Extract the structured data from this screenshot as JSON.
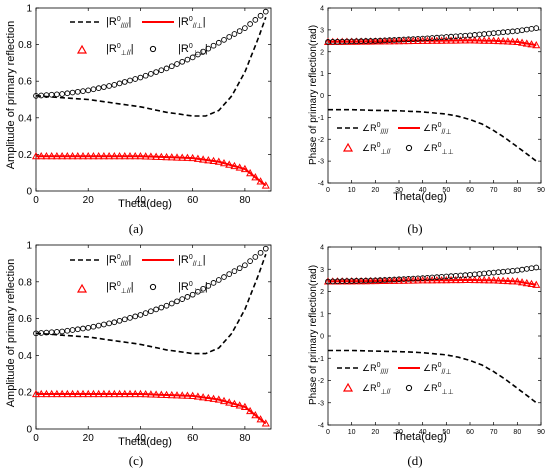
{
  "chart_data": [
    {
      "id": "a",
      "type": "line",
      "subcaption": "(a)",
      "xlabel": "Theta(deg)",
      "ylabel": "Amplitude of primary reflection",
      "xlim": [
        0,
        90
      ],
      "ylim": [
        0,
        1
      ],
      "xticks": [
        0,
        20,
        40,
        60,
        80
      ],
      "yticks": [
        0,
        0.2,
        0.4,
        0.6,
        0.8,
        1
      ],
      "grid": false,
      "legend_position": "top",
      "legend": [
        "|R0_////|",
        "|R0_//⊥|",
        "|R0_⊥//|",
        "|R0_⊥⊥|"
      ],
      "series": [
        {
          "name": "|R0_////|",
          "style": "dashed",
          "color": "#000000",
          "x": [
            0,
            10,
            20,
            30,
            40,
            50,
            60,
            65,
            70,
            75,
            80,
            85,
            88
          ],
          "y": [
            0.52,
            0.51,
            0.5,
            0.48,
            0.46,
            0.43,
            0.41,
            0.41,
            0.44,
            0.52,
            0.65,
            0.83,
            0.95
          ]
        },
        {
          "name": "|R0_//⊥|",
          "style": "solid",
          "color": "#ff0000",
          "x": [
            0,
            20,
            40,
            60,
            70,
            80,
            88
          ],
          "y": [
            0.19,
            0.19,
            0.19,
            0.18,
            0.16,
            0.12,
            0.03
          ]
        },
        {
          "name": "|R0_⊥//|",
          "style": "triangle",
          "color": "#ff0000",
          "x": [
            0,
            20,
            40,
            60,
            70,
            80,
            88
          ],
          "y": [
            0.19,
            0.19,
            0.19,
            0.18,
            0.16,
            0.12,
            0.03
          ]
        },
        {
          "name": "|R0_⊥⊥|",
          "style": "circle",
          "color": "#000000",
          "x": [
            0,
            10,
            20,
            30,
            40,
            50,
            60,
            70,
            80,
            88
          ],
          "y": [
            0.52,
            0.53,
            0.55,
            0.58,
            0.62,
            0.67,
            0.73,
            0.81,
            0.89,
            0.98
          ]
        }
      ]
    },
    {
      "id": "b",
      "type": "line",
      "subcaption": "(b)",
      "xlabel": "Theta(deg)",
      "ylabel": "Phase of primary reflection(rad)",
      "xlim": [
        0,
        90
      ],
      "ylim": [
        -4,
        4
      ],
      "xticks": [
        0,
        10,
        20,
        30,
        40,
        50,
        60,
        70,
        80,
        90
      ],
      "yticks": [
        -4,
        -3,
        -2,
        -1,
        0,
        1,
        2,
        3,
        4
      ],
      "grid": false,
      "legend_position": "center",
      "legend": [
        "∠R0_////",
        "∠R0_//⊥",
        "∠R0_⊥//",
        "∠R0_⊥⊥"
      ],
      "series": [
        {
          "name": "∠R0_////",
          "style": "dashed",
          "color": "#000000",
          "x": [
            0,
            10,
            20,
            30,
            40,
            50,
            55,
            60,
            65,
            70,
            75,
            80,
            85,
            88
          ],
          "y": [
            -0.65,
            -0.65,
            -0.68,
            -0.7,
            -0.75,
            -0.85,
            -0.95,
            -1.1,
            -1.3,
            -1.6,
            -1.95,
            -2.35,
            -2.75,
            -3.0
          ]
        },
        {
          "name": "∠R0_//⊥",
          "style": "solid",
          "color": "#ff0000",
          "x": [
            0,
            20,
            40,
            60,
            70,
            80,
            88
          ],
          "y": [
            2.45,
            2.47,
            2.5,
            2.52,
            2.5,
            2.45,
            2.3
          ]
        },
        {
          "name": "∠R0_⊥//",
          "style": "triangle",
          "color": "#ff0000",
          "x": [
            0,
            20,
            40,
            60,
            70,
            80,
            88
          ],
          "y": [
            2.45,
            2.47,
            2.5,
            2.52,
            2.5,
            2.45,
            2.3
          ]
        },
        {
          "name": "∠R0_⊥⊥",
          "style": "circle",
          "color": "#000000",
          "x": [
            0,
            20,
            40,
            60,
            80,
            88
          ],
          "y": [
            2.45,
            2.5,
            2.6,
            2.75,
            2.95,
            3.08
          ]
        }
      ]
    },
    {
      "id": "c",
      "type": "line",
      "subcaption": "(c)",
      "xlabel": "Theta(deg)",
      "ylabel": "Amplitude of primary reflection",
      "xlim": [
        0,
        90
      ],
      "ylim": [
        0,
        1
      ],
      "xticks": [
        0,
        20,
        40,
        60,
        80
      ],
      "yticks": [
        0,
        0.2,
        0.4,
        0.6,
        0.8,
        1
      ],
      "grid": false,
      "legend_position": "top",
      "legend": [
        "|R0_////|",
        "|R0_//⊥|",
        "|R0_⊥//|",
        "|R0_⊥⊥|"
      ],
      "series": [
        {
          "name": "|R0_////|",
          "style": "dashed",
          "color": "#000000",
          "x": [
            0,
            10,
            20,
            30,
            40,
            50,
            60,
            65,
            70,
            75,
            80,
            85,
            88
          ],
          "y": [
            0.52,
            0.51,
            0.5,
            0.48,
            0.46,
            0.43,
            0.41,
            0.41,
            0.44,
            0.52,
            0.65,
            0.83,
            0.95
          ]
        },
        {
          "name": "|R0_//⊥|",
          "style": "solid",
          "color": "#ff0000",
          "x": [
            0,
            20,
            40,
            60,
            70,
            80,
            88
          ],
          "y": [
            0.19,
            0.19,
            0.19,
            0.18,
            0.16,
            0.12,
            0.03
          ]
        },
        {
          "name": "|R0_⊥//|",
          "style": "triangle",
          "color": "#ff0000",
          "x": [
            0,
            20,
            40,
            60,
            70,
            80,
            88
          ],
          "y": [
            0.19,
            0.19,
            0.19,
            0.18,
            0.16,
            0.12,
            0.03
          ]
        },
        {
          "name": "|R0_⊥⊥|",
          "style": "circle",
          "color": "#000000",
          "x": [
            0,
            10,
            20,
            30,
            40,
            50,
            60,
            70,
            80,
            88
          ],
          "y": [
            0.52,
            0.53,
            0.55,
            0.58,
            0.62,
            0.67,
            0.73,
            0.81,
            0.89,
            0.98
          ]
        }
      ]
    },
    {
      "id": "d",
      "type": "line",
      "subcaption": "(d)",
      "xlabel": "Theta(deg)",
      "ylabel": "Phase of primary reflection(rad)",
      "xlim": [
        0,
        90
      ],
      "ylim": [
        -4,
        4
      ],
      "xticks": [
        0,
        10,
        20,
        30,
        40,
        50,
        60,
        70,
        80,
        90
      ],
      "yticks": [
        -4,
        -3,
        -2,
        -1,
        0,
        1,
        2,
        3,
        4
      ],
      "grid": false,
      "legend_position": "center",
      "legend": [
        "∠R0_////",
        "∠R0_//⊥",
        "∠R0_⊥//",
        "∠R0_⊥⊥"
      ],
      "series": [
        {
          "name": "∠R0_////",
          "style": "dashed",
          "color": "#000000",
          "x": [
            0,
            10,
            20,
            30,
            40,
            50,
            55,
            60,
            65,
            70,
            75,
            80,
            85,
            88
          ],
          "y": [
            -0.65,
            -0.65,
            -0.68,
            -0.7,
            -0.75,
            -0.85,
            -0.95,
            -1.1,
            -1.3,
            -1.6,
            -1.95,
            -2.35,
            -2.75,
            -3.0
          ]
        },
        {
          "name": "∠R0_//⊥",
          "style": "solid",
          "color": "#ff0000",
          "x": [
            0,
            20,
            40,
            60,
            70,
            80,
            88
          ],
          "y": [
            2.45,
            2.47,
            2.5,
            2.52,
            2.5,
            2.45,
            2.3
          ]
        },
        {
          "name": "∠R0_⊥//",
          "style": "triangle",
          "color": "#ff0000",
          "x": [
            0,
            20,
            40,
            60,
            70,
            80,
            88
          ],
          "y": [
            2.45,
            2.47,
            2.5,
            2.52,
            2.5,
            2.45,
            2.3
          ]
        },
        {
          "name": "∠R0_⊥⊥",
          "style": "circle",
          "color": "#000000",
          "x": [
            0,
            20,
            40,
            60,
            80,
            88
          ],
          "y": [
            2.45,
            2.5,
            2.6,
            2.75,
            2.95,
            3.08
          ]
        }
      ]
    }
  ]
}
